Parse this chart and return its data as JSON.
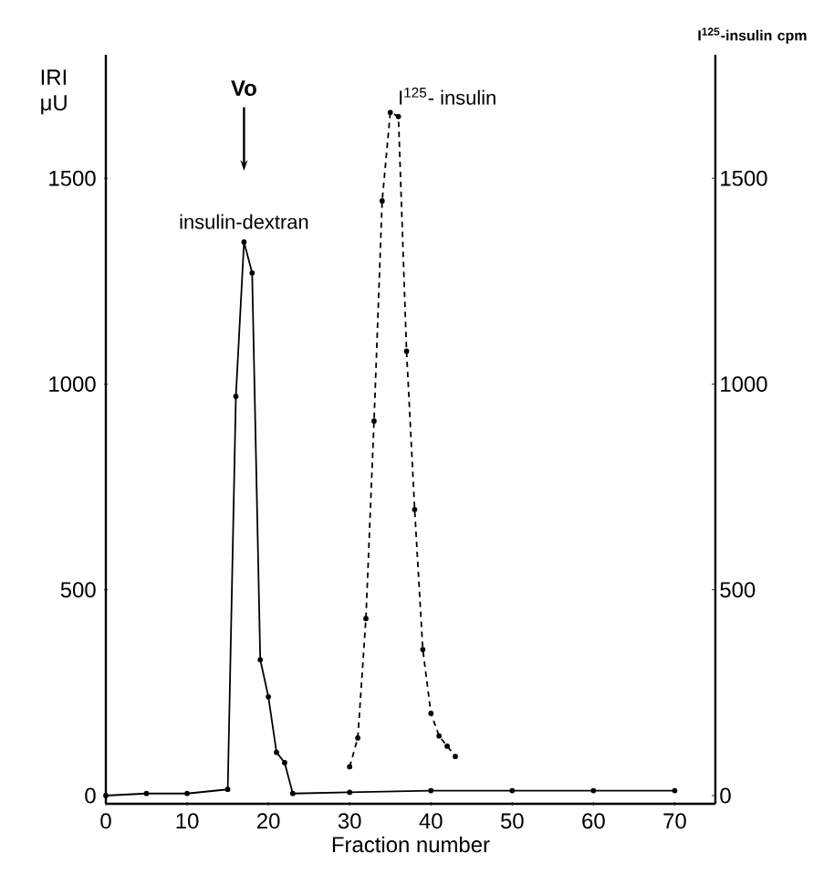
{
  "chart_data": {
    "type": "line",
    "xlabel": "Fraction number",
    "ylabel": "IRI μU",
    "y2label": "I$^{125}$-insulin cpm",
    "xlim": [
      0,
      75
    ],
    "xticks": [
      0,
      10,
      20,
      30,
      40,
      50,
      60,
      70
    ],
    "ylim": [
      -20,
      1800
    ],
    "yticks": [
      0,
      500,
      1000,
      1500
    ],
    "y2lim": [
      -20,
      1800
    ],
    "y2ticks": [
      0,
      500,
      1000,
      1500
    ],
    "marker": "circle",
    "grid": false,
    "legend": false,
    "series": [
      {
        "name": "insulin-dextran",
        "color": "#000000",
        "line_style": "solid",
        "x": [
          0,
          5,
          10,
          15,
          16,
          17,
          18,
          19,
          20,
          21,
          22,
          23,
          30,
          40,
          50,
          60,
          70
        ],
        "values": [
          0,
          5,
          5,
          15,
          970,
          1345,
          1270,
          330,
          240,
          105,
          80,
          5,
          8,
          12,
          12,
          12,
          12
        ]
      },
      {
        "name": "I$^{125}$- insulin",
        "color": "#000000",
        "line_style": "dashed",
        "axis": "y2",
        "x": [
          30,
          31,
          32,
          33,
          34,
          35,
          36,
          37,
          38,
          39,
          40,
          41,
          42,
          43
        ],
        "values": [
          70,
          140,
          430,
          910,
          1445,
          1660,
          1650,
          1080,
          695,
          355,
          200,
          145,
          120,
          95
        ]
      }
    ],
    "annotations": [
      "Vo"
    ]
  }
}
